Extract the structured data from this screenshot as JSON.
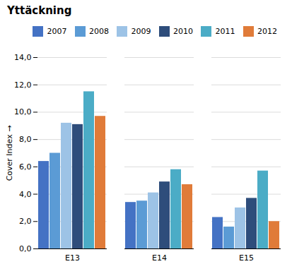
{
  "chart_data": {
    "type": "bar",
    "title": "Yttäckning",
    "ylabel": "Cover Index",
    "categories": [
      "E13",
      "E14",
      "E15"
    ],
    "series": [
      {
        "name": "2007",
        "color": "#4472C4",
        "values": [
          6.4,
          3.4,
          2.3
        ]
      },
      {
        "name": "2008",
        "color": "#5B9BD5",
        "values": [
          7.0,
          3.5,
          1.6
        ]
      },
      {
        "name": "2009",
        "color": "#9DC3E6",
        "values": [
          9.2,
          4.1,
          3.0
        ]
      },
      {
        "name": "2010",
        "color": "#2E4D7B",
        "values": [
          9.1,
          4.9,
          3.7
        ]
      },
      {
        "name": "2011",
        "color": "#4BACC6",
        "values": [
          11.5,
          5.8,
          5.7
        ]
      },
      {
        "name": "2012",
        "color": "#E07B39",
        "values": [
          9.7,
          4.7,
          2.0
        ]
      }
    ],
    "ylim": [
      0,
      14
    ],
    "yticks": [
      {
        "value": 0,
        "label": "0,0"
      },
      {
        "value": 2,
        "label": "2,0"
      },
      {
        "value": 4,
        "label": "4,0"
      },
      {
        "value": 6,
        "label": "6,0"
      },
      {
        "value": 8,
        "label": "8,0"
      },
      {
        "value": 10,
        "label": "10,0"
      },
      {
        "value": 12,
        "label": "12,0"
      },
      {
        "value": 14,
        "label": "14,0"
      }
    ],
    "grid": true,
    "legend": "upper right"
  }
}
